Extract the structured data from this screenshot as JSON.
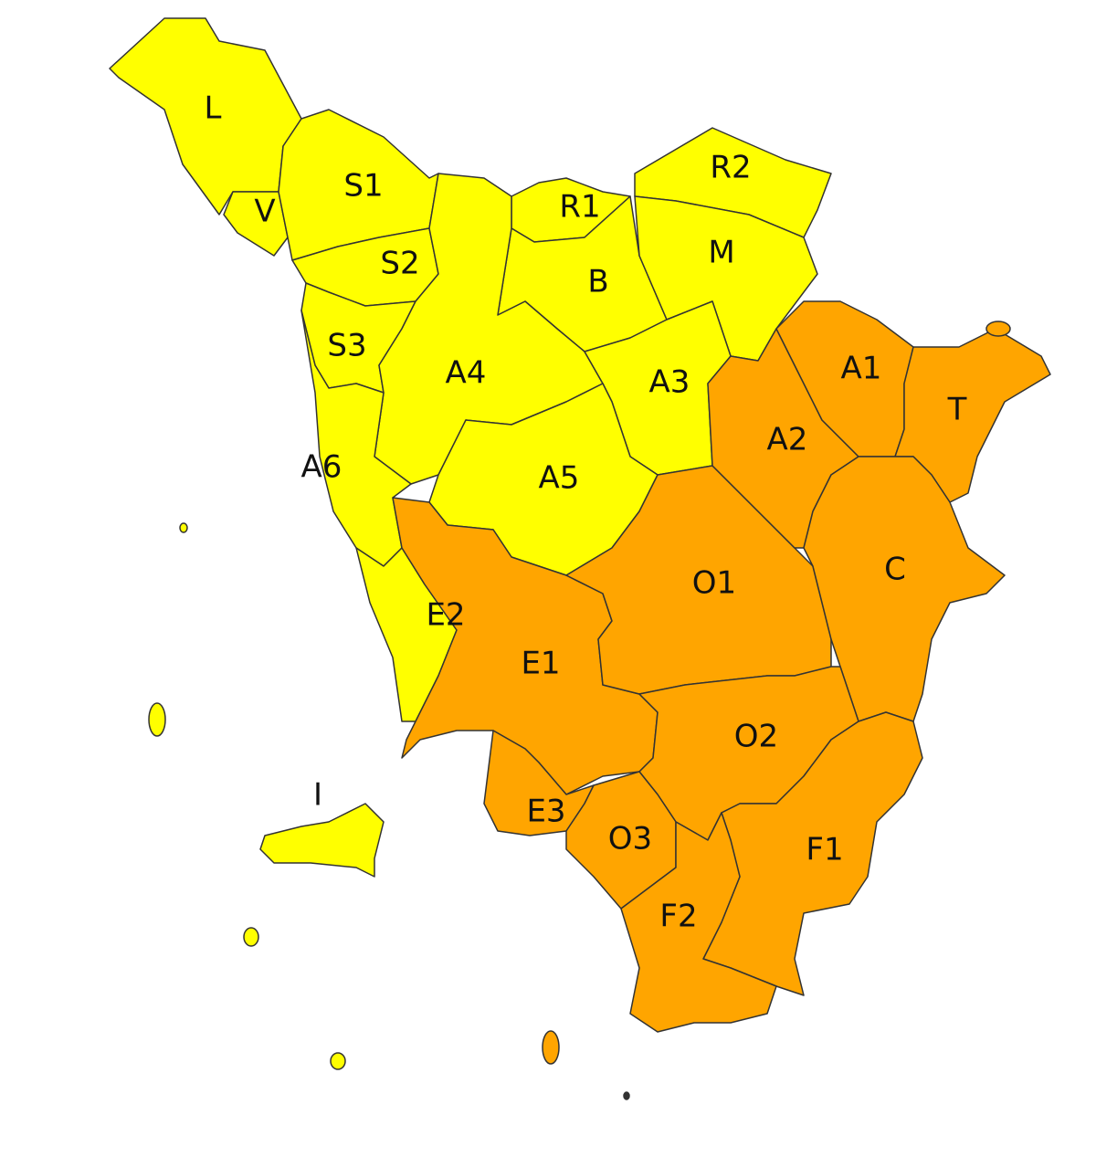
{
  "zones": [
    {
      "label": "L",
      "color": "#ffff00"
    },
    {
      "label": "V",
      "color": "#ffff00"
    },
    {
      "label": "S1",
      "color": "#ffff00"
    },
    {
      "label": "S2",
      "color": "#ffff00"
    },
    {
      "label": "R1",
      "color": "#ffff00"
    },
    {
      "label": "B",
      "color": "#ffff00"
    },
    {
      "label": "R2",
      "color": "#ffff00"
    },
    {
      "label": "M",
      "color": "#ffff00"
    },
    {
      "label": "S3",
      "color": "#ffff00"
    },
    {
      "label": "A4",
      "color": "#ffff00"
    },
    {
      "label": "A3",
      "color": "#ffff00"
    },
    {
      "label": "A6",
      "color": "#ffff00"
    },
    {
      "label": "A5",
      "color": "#ffff00"
    },
    {
      "label": "E2",
      "color": "#ffff00"
    },
    {
      "label": "E1",
      "color": "#ffa500"
    },
    {
      "label": "O1",
      "color": "#ffa500"
    },
    {
      "label": "A2",
      "color": "#ffa500"
    },
    {
      "label": "A1",
      "color": "#ffa500"
    },
    {
      "label": "T",
      "color": "#ffa500"
    },
    {
      "label": "C",
      "color": "#ffa500"
    },
    {
      "label": "O2",
      "color": "#ffa500"
    },
    {
      "label": "E3",
      "color": "#ffa500"
    },
    {
      "label": "O3",
      "color": "#ffa500"
    },
    {
      "label": "F1",
      "color": "#ffa500"
    },
    {
      "label": "F2",
      "color": "#ffa500"
    },
    {
      "label": "I",
      "color": "#ffff00"
    }
  ]
}
